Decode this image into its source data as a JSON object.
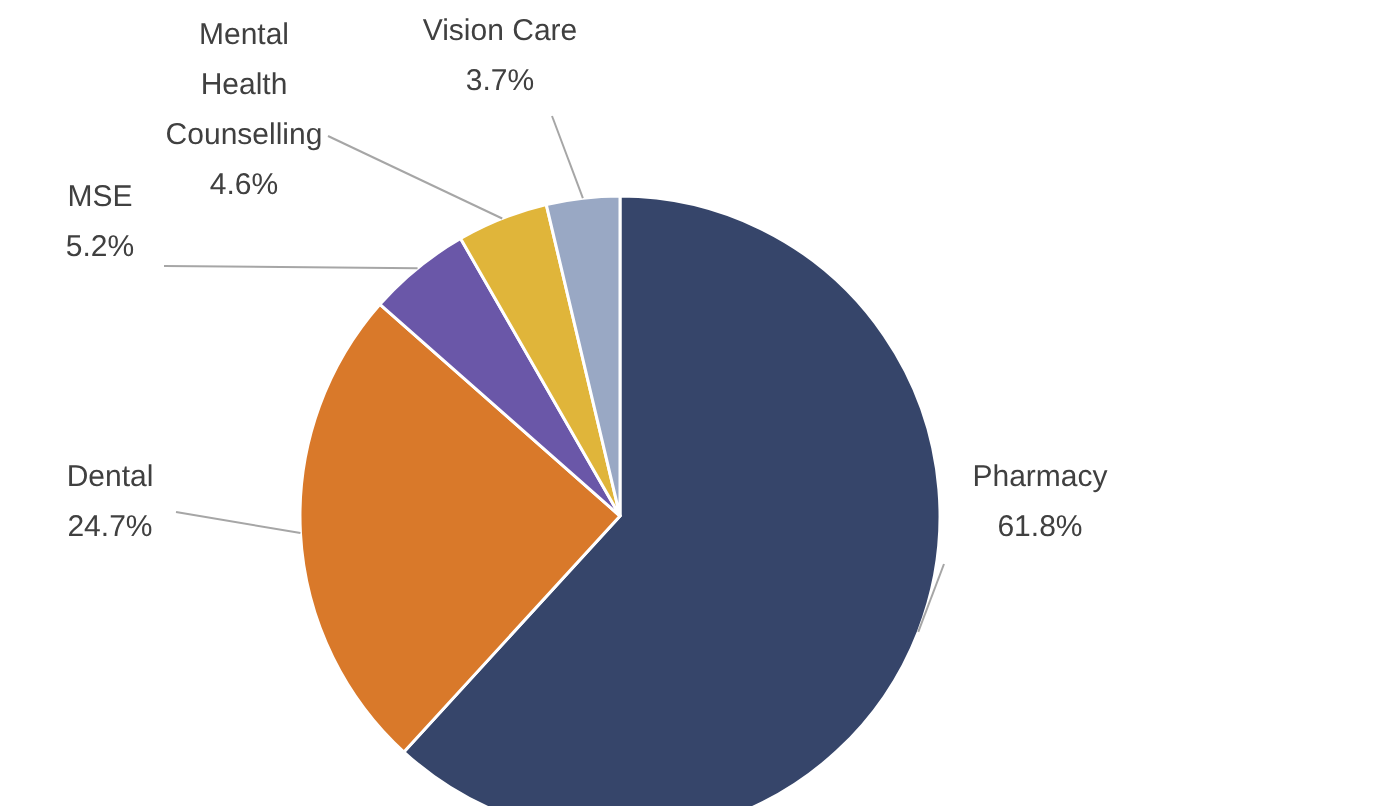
{
  "chart_data": {
    "type": "pie",
    "categories": [
      "Pharmacy",
      "Dental",
      "MSE",
      "Mental Health Counselling",
      "Vision Care"
    ],
    "values": [
      61.8,
      24.7,
      5.2,
      4.6,
      3.7
    ],
    "colors": [
      "#36456a",
      "#d9792a",
      "#6a57a8",
      "#e0b53a",
      "#99a8c4"
    ],
    "value_labels": [
      "61.8%",
      "24.7%",
      "5.2%",
      "4.6%",
      "3.7%"
    ]
  }
}
